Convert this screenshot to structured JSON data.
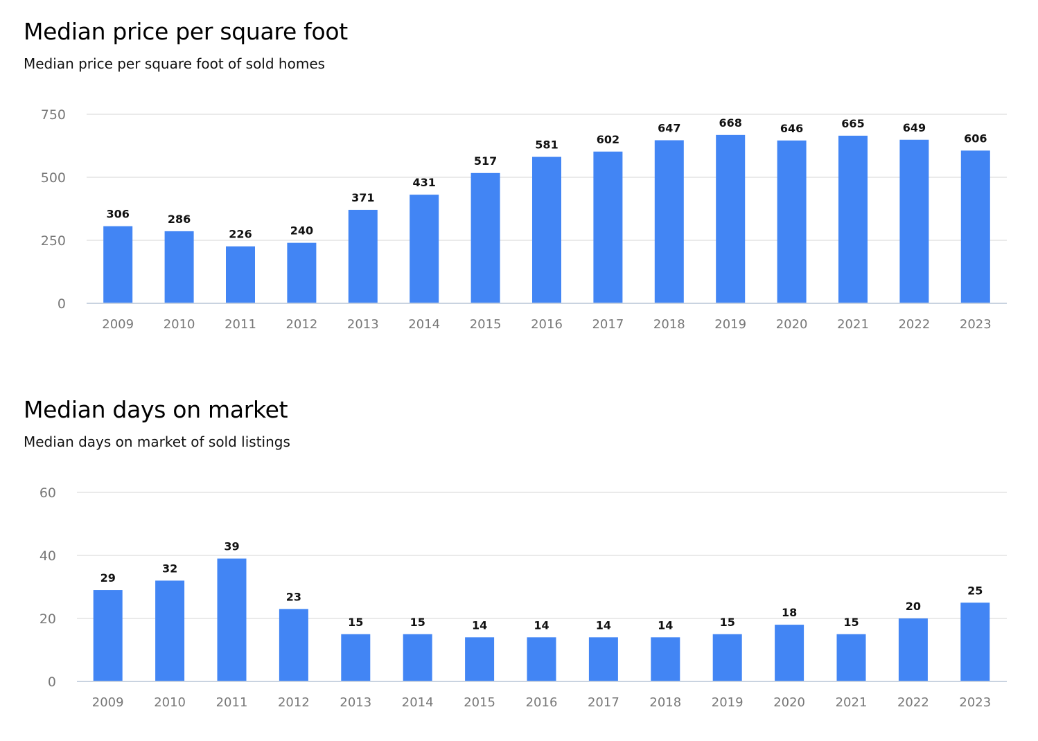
{
  "charts": [
    {
      "title": "Median price per square foot",
      "subtitle": "Median price per square foot of sold homes"
    },
    {
      "title": "Median days on market",
      "subtitle": "Median days on market of sold listings"
    }
  ],
  "chart_data": [
    {
      "type": "bar",
      "title": "Median price per square foot",
      "subtitle": "Median price per square foot of sold homes",
      "categories": [
        "2009",
        "2010",
        "2011",
        "2012",
        "2013",
        "2014",
        "2015",
        "2016",
        "2017",
        "2018",
        "2019",
        "2020",
        "2021",
        "2022",
        "2023"
      ],
      "values": [
        306,
        286,
        226,
        240,
        371,
        431,
        517,
        581,
        602,
        647,
        668,
        646,
        665,
        649,
        606
      ],
      "yticks": [
        0,
        250,
        500,
        750
      ],
      "ylim": [
        0,
        750
      ],
      "grid": true,
      "bar_color": "#4285f4"
    },
    {
      "type": "bar",
      "title": "Median days on market",
      "subtitle": "Median days on market of sold listings",
      "categories": [
        "2009",
        "2010",
        "2011",
        "2012",
        "2013",
        "2014",
        "2015",
        "2016",
        "2017",
        "2018",
        "2019",
        "2020",
        "2021",
        "2022",
        "2023"
      ],
      "values": [
        29,
        32,
        39,
        23,
        15,
        15,
        14,
        14,
        14,
        14,
        15,
        18,
        15,
        20,
        25
      ],
      "yticks": [
        0,
        20,
        40,
        60
      ],
      "ylim": [
        0,
        60
      ],
      "grid": true,
      "bar_color": "#4285f4"
    }
  ]
}
